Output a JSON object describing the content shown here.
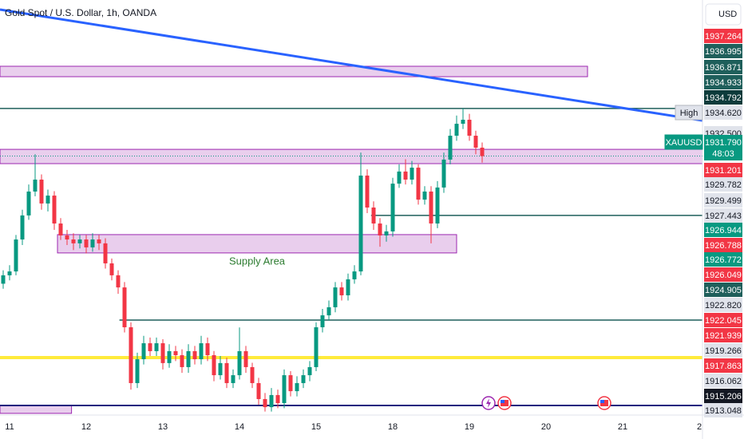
{
  "header": {
    "title": "Gold Spot / U.S. Dollar, 1h, OANDA",
    "currency": "USD"
  },
  "chart_data": {
    "type": "candlestick",
    "categories": [
      null,
      "11",
      null,
      null,
      null,
      null,
      null,
      null,
      null,
      null,
      null,
      null,
      null,
      "12",
      null,
      null,
      null,
      null,
      null,
      null,
      null,
      null,
      null,
      null,
      null,
      "13",
      null,
      null,
      null,
      null,
      null,
      null,
      null,
      null,
      null,
      null,
      null,
      "14",
      null,
      null,
      null,
      null,
      null,
      null,
      null,
      null,
      null,
      null,
      null,
      "15",
      null,
      null,
      null,
      null,
      null,
      null,
      null,
      null,
      null,
      null,
      null,
      "18",
      null,
      null,
      null,
      null,
      null,
      null,
      null,
      null,
      null,
      null,
      null,
      "19",
      null,
      null,
      null,
      null,
      null,
      null,
      null,
      null,
      null,
      null,
      null,
      "20",
      null,
      null,
      null,
      null,
      null,
      null,
      null,
      null,
      null,
      null,
      null,
      "21",
      null,
      null,
      null,
      null,
      null,
      null,
      null,
      null,
      null,
      null,
      null,
      "2"
    ],
    "candles": [
      [
        1924.2,
        1925.0,
        1923.9,
        1924.7
      ],
      [
        1924.7,
        1925.3,
        1924.4,
        1924.93
      ],
      [
        1924.93,
        1927.1,
        1924.7,
        1926.83
      ],
      [
        1926.83,
        1928.6,
        1926.5,
        1928.26
      ],
      [
        1928.26,
        1930.1,
        1928.0,
        1929.68
      ],
      [
        1929.68,
        1931.9,
        1929.4,
        1930.39
      ],
      [
        1930.39,
        1930.7,
        1928.6,
        1928.97
      ],
      [
        1928.97,
        1929.8,
        1928.5,
        1929.44
      ],
      [
        1929.44,
        1929.7,
        1927.4,
        1927.78
      ],
      [
        1927.78,
        1928.1,
        1926.8,
        1927.07
      ],
      [
        1927.07,
        1927.4,
        1926.5,
        1926.83
      ],
      [
        1926.83,
        1927.2,
        1926.2,
        1926.6
      ],
      [
        1926.6,
        1927.1,
        1926.3,
        1926.83
      ],
      [
        1926.83,
        1927.1,
        1926.0,
        1926.36
      ],
      [
        1926.36,
        1927.2,
        1926.1,
        1926.83
      ],
      [
        1926.83,
        1927.1,
        1926.2,
        1926.6
      ],
      [
        1926.6,
        1926.9,
        1925.1,
        1925.41
      ],
      [
        1925.41,
        1925.7,
        1924.4,
        1924.7
      ],
      [
        1924.7,
        1925.0,
        1923.6,
        1923.98
      ],
      [
        1923.98,
        1924.3,
        1921.3,
        1921.61
      ],
      [
        1921.61,
        1921.9,
        1917.9,
        1918.29
      ],
      [
        1918.29,
        1920.1,
        1918.0,
        1919.71
      ],
      [
        1919.71,
        1921.1,
        1919.4,
        1920.66
      ],
      [
        1920.66,
        1921.0,
        1919.9,
        1920.19
      ],
      [
        1920.19,
        1921.0,
        1919.9,
        1920.66
      ],
      [
        1920.66,
        1920.9,
        1919.1,
        1919.48
      ],
      [
        1919.48,
        1920.6,
        1919.2,
        1920.19
      ],
      [
        1920.19,
        1920.5,
        1919.6,
        1919.95
      ],
      [
        1919.95,
        1920.3,
        1918.9,
        1919.24
      ],
      [
        1919.24,
        1920.6,
        1918.9,
        1920.19
      ],
      [
        1920.19,
        1920.5,
        1919.4,
        1919.71
      ],
      [
        1919.71,
        1921.1,
        1919.4,
        1920.66
      ],
      [
        1920.66,
        1921.0,
        1919.6,
        1919.95
      ],
      [
        1919.95,
        1920.2,
        1918.4,
        1918.76
      ],
      [
        1918.76,
        1919.9,
        1918.5,
        1919.48
      ],
      [
        1919.48,
        1919.8,
        1918.0,
        1918.29
      ],
      [
        1918.29,
        1919.1,
        1918.0,
        1918.76
      ],
      [
        1918.76,
        1921.6,
        1918.5,
        1920.19
      ],
      [
        1920.19,
        1920.5,
        1918.9,
        1919.24
      ],
      [
        1919.24,
        1919.5,
        1918.0,
        1918.29
      ],
      [
        1918.29,
        1918.6,
        1917.0,
        1917.34
      ],
      [
        1917.34,
        1917.7,
        1916.6,
        1916.86
      ],
      [
        1916.86,
        1918.0,
        1916.6,
        1917.58
      ],
      [
        1917.58,
        1917.9,
        1916.8,
        1917.1
      ],
      [
        1917.1,
        1919.1,
        1916.8,
        1918.76
      ],
      [
        1918.76,
        1919.0,
        1917.5,
        1917.81
      ],
      [
        1917.81,
        1918.7,
        1917.5,
        1918.29
      ],
      [
        1918.29,
        1919.1,
        1918.0,
        1918.76
      ],
      [
        1918.76,
        1919.6,
        1918.4,
        1919.24
      ],
      [
        1919.24,
        1921.9,
        1919.0,
        1921.61
      ],
      [
        1921.61,
        1922.7,
        1921.3,
        1922.32
      ],
      [
        1922.32,
        1923.2,
        1922.0,
        1922.8
      ],
      [
        1922.8,
        1924.3,
        1922.5,
        1923.98
      ],
      [
        1923.98,
        1924.3,
        1923.2,
        1923.51
      ],
      [
        1923.51,
        1924.8,
        1923.2,
        1924.46
      ],
      [
        1924.46,
        1925.3,
        1924.2,
        1924.93
      ],
      [
        1924.93,
        1932.0,
        1924.7,
        1930.63
      ],
      [
        1930.63,
        1931.0,
        1928.4,
        1928.73
      ],
      [
        1928.73,
        1929.1,
        1927.4,
        1927.78
      ],
      [
        1927.78,
        1928.1,
        1926.4,
        1927.07
      ],
      [
        1927.07,
        1927.7,
        1926.7,
        1927.31
      ],
      [
        1927.31,
        1930.5,
        1927.0,
        1930.15
      ],
      [
        1930.15,
        1931.3,
        1929.9,
        1930.87
      ],
      [
        1930.87,
        1931.6,
        1930.1,
        1930.39
      ],
      [
        1930.39,
        1931.5,
        1930.1,
        1931.1
      ],
      [
        1931.1,
        1931.3,
        1928.9,
        1929.2
      ],
      [
        1929.2,
        1930.0,
        1928.9,
        1929.68
      ],
      [
        1929.68,
        1930.0,
        1926.6,
        1927.78
      ],
      [
        1927.78,
        1930.3,
        1927.5,
        1929.92
      ],
      [
        1929.92,
        1932.0,
        1929.6,
        1931.58
      ],
      [
        1931.58,
        1933.4,
        1931.3,
        1933.0
      ],
      [
        1933.0,
        1934.2,
        1932.7,
        1933.71
      ],
      [
        1933.71,
        1934.62,
        1933.4,
        1933.95
      ],
      [
        1933.95,
        1934.3,
        1932.7,
        1933.0
      ],
      [
        1933.0,
        1933.3,
        1931.9,
        1932.29
      ],
      [
        1932.29,
        1932.6,
        1931.4,
        1931.79
      ],
      null,
      null,
      null,
      null,
      null,
      null,
      null,
      null,
      null,
      null,
      null,
      null,
      null,
      null,
      null,
      null,
      null,
      null,
      null,
      null,
      null,
      null,
      null,
      null,
      null,
      null,
      null,
      null,
      null,
      null,
      null,
      null,
      null,
      null
    ],
    "ylim": [
      1916.39,
      1941.07
    ],
    "up_color": "#089981",
    "down_color": "#f23645",
    "levels": [
      {
        "price": 1934.62,
        "color": "#1f5f5b",
        "width": 1.5
      },
      {
        "price": 1928.26,
        "color": "#1f5f5b",
        "width": 1.5,
        "from": 57.6
      },
      {
        "price": 1922.04,
        "color": "#1f5f5b",
        "width": 1.5,
        "from": 18.2
      },
      {
        "price": 1919.81,
        "color": "#ffeb3b",
        "width": 4
      },
      {
        "price": 1916.96,
        "color": "#1a237e",
        "width": 2
      }
    ],
    "zones": [
      {
        "range": [
          1936.51,
          1937.13
        ],
        "from": -0.5,
        "to": 91.5
      },
      {
        "range": [
          1931.34,
          1932.19
        ]
      },
      {
        "range": [
          1926.03,
          1927.12
        ],
        "from": 8.5,
        "to": 71,
        "label": "Supply Area"
      },
      {
        "range": [
          1916.49,
          1916.96
        ],
        "from": -0.5,
        "to": 10.7
      }
    ],
    "zone_color": "#e1bee7",
    "zone_border": "#9c27b0",
    "trendline": {
      "points": [
        [
          -0.5,
          1940.5
        ],
        [
          109.5,
          1933.9
        ]
      ],
      "color": "#2962ff"
    },
    "price_tags": [
      {
        "value": 1937.264,
        "color": "#f23645",
        "text_color": "#ffffff"
      },
      {
        "value": 1936.995,
        "color": "#1f5f5b",
        "text_color": "#ffffff"
      },
      {
        "value": 1936.871,
        "color": "#1f5f5b",
        "text_color": "#ffffff"
      },
      {
        "value": 1934.933,
        "color": "#1f5f5b",
        "text_color": "#ffffff"
      },
      {
        "value": 1934.792,
        "color": "#0d3b3b",
        "text_color": "#ffffff"
      },
      {
        "value": 1934.62,
        "label": "1934.620",
        "name": "High",
        "color": "#e0e3eb",
        "text_color": "#131722"
      },
      {
        "value": 1932.5,
        "label": "1932.500",
        "color": "#e0e3eb",
        "text_color": "#131722"
      },
      {
        "value": 1931.79,
        "label": "1931.790",
        "name": "XAUUSD",
        "color": "#089981",
        "text_color": "#ffffff"
      },
      {
        "value": 1931.201,
        "color": "#f23645",
        "text_color": "#ffffff"
      },
      {
        "value": 1929.782,
        "color": "#e0e3eb",
        "text_color": "#131722"
      },
      {
        "value": 1929.499,
        "color": "#e0e3eb",
        "text_color": "#131722"
      },
      {
        "value": 1927.443,
        "color": "#e0e3eb",
        "text_color": "#131722"
      },
      {
        "value": 1926.944,
        "color": "#089981",
        "text_color": "#ffffff"
      },
      {
        "value": 1926.788,
        "color": "#f23645",
        "text_color": "#ffffff"
      },
      {
        "value": 1926.772,
        "color": "#089981",
        "text_color": "#ffffff"
      },
      {
        "value": 1926.049,
        "color": "#f23645",
        "text_color": "#ffffff"
      },
      {
        "value": 1924.905,
        "color": "#1f5f5b",
        "text_color": "#ffffff"
      },
      {
        "value": 1922.82,
        "label": "1922.820",
        "color": "#e0e3eb",
        "text_color": "#131722"
      },
      {
        "value": 1922.045,
        "color": "#f23645",
        "text_color": "#ffffff"
      },
      {
        "value": 1921.939,
        "color": "#f23645",
        "text_color": "#ffffff"
      },
      {
        "value": 1919.266,
        "color": "#e0e3eb",
        "text_color": "#131722"
      },
      {
        "value": 1917.863,
        "color": "#f23645",
        "text_color": "#ffffff"
      },
      {
        "value": 1916.062,
        "color": "#e0e3eb",
        "text_color": "#131722"
      },
      {
        "value": 1915.206,
        "color": "#131722",
        "text_color": "#ffffff"
      },
      {
        "value": 1913.048,
        "color": "#e0e3eb",
        "text_color": "#131722"
      }
    ],
    "countdown": "48:03"
  }
}
